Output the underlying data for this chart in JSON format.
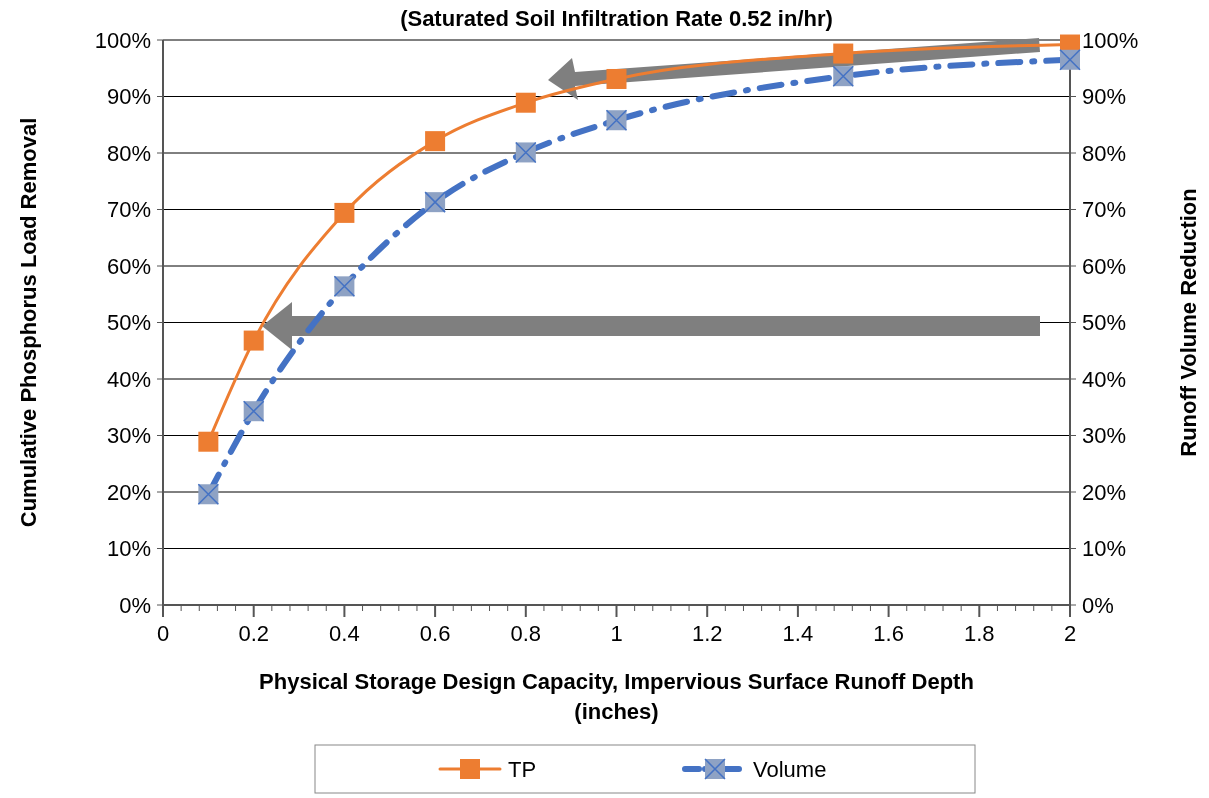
{
  "chart_data": {
    "type": "line",
    "title": "(Saturated Soil Infiltration Rate 0.52 in/hr)",
    "xlabel": "Physical Storage Design Capacity, Impervious Surface Runoff  Depth (inches)",
    "ylabel": "Cumulative Phosphorus Load Removal",
    "y2label": "Runoff Volume Reduction",
    "x": [
      0.1,
      0.2,
      0.4,
      0.6,
      0.8,
      1.0,
      1.5,
      2.0
    ],
    "series": [
      {
        "name": "TP",
        "color": "#ed7d31",
        "marker": "square",
        "line_style": "solid",
        "values": [
          28.9,
          46.8,
          69.4,
          82.1,
          88.9,
          93.1,
          97.6,
          99.2
        ]
      },
      {
        "name": "Volume",
        "color": "#4472c4",
        "marker": "cross",
        "line_style": "dashed",
        "values": [
          19.6,
          34.3,
          56.4,
          71.3,
          80.1,
          85.8,
          93.6,
          96.5
        ]
      }
    ],
    "xlim": [
      0,
      2
    ],
    "xticks": [
      0,
      {
        "value": 0.04,
        "label": null
      },
      {
        "value": 0.08,
        "label": null
      },
      {
        "value": 0.12,
        "label": null
      },
      {
        "value": 0.16,
        "label": null
      },
      0.2,
      {
        "value": 0.24,
        "label": null
      },
      {
        "value": 0.28,
        "label": null
      },
      {
        "value": 0.32,
        "label": null
      },
      {
        "value": 0.36,
        "label": null
      },
      0.4,
      {
        "value": 0.44,
        "label": null
      },
      {
        "value": 0.48,
        "label": null
      },
      {
        "value": 0.52,
        "label": null
      },
      {
        "value": 0.56,
        "label": null
      },
      0.6,
      {
        "value": 0.64,
        "label": null
      },
      {
        "value": 0.68,
        "label": null
      },
      {
        "value": 0.72,
        "label": null
      },
      {
        "value": 0.76,
        "label": null
      },
      0.8,
      {
        "value": 0.84,
        "label": null
      },
      {
        "value": 0.88,
        "label": null
      },
      {
        "value": 0.92,
        "label": null
      },
      {
        "value": 0.96,
        "label": null
      },
      1,
      {
        "value": 1.04,
        "label": null
      },
      {
        "value": 1.08,
        "label": null
      },
      {
        "value": 1.12,
        "label": null
      },
      {
        "value": 1.16,
        "label": null
      },
      1.2,
      {
        "value": 1.24,
        "label": null
      },
      {
        "value": 1.28,
        "label": null
      },
      {
        "value": 1.32,
        "label": null
      },
      {
        "value": 1.36,
        "label": null
      },
      1.4,
      {
        "value": 1.44,
        "label": null
      },
      {
        "value": 1.48,
        "label": null
      },
      {
        "value": 1.52,
        "label": null
      },
      {
        "value": 1.56,
        "label": null
      },
      1.6,
      {
        "value": 1.64,
        "label": null
      },
      {
        "value": 1.68,
        "label": null
      },
      {
        "value": 1.72,
        "label": null
      },
      {
        "value": 1.76,
        "label": null
      },
      1.8,
      {
        "value": 1.84,
        "label": null
      },
      {
        "value": 1.88,
        "label": null
      },
      {
        "value": 1.92,
        "label": null
      },
      {
        "value": 1.96,
        "label": null
      },
      2
    ],
    "ylim": [
      0,
      100
    ],
    "yticks": [
      {
        "value": 0,
        "label": "0%"
      },
      {
        "value": 10,
        "label": "10%"
      },
      {
        "value": 20,
        "label": "20%"
      },
      {
        "value": 30,
        "label": "30%"
      },
      {
        "value": 40,
        "label": "40%"
      },
      {
        "value": 50,
        "label": "50%"
      },
      {
        "value": 60,
        "label": "60%"
      },
      {
        "value": 70,
        "label": "70%"
      },
      {
        "value": 80,
        "label": "80%"
      },
      {
        "value": 90,
        "label": "90%"
      },
      {
        "value": 100,
        "label": "100%"
      }
    ],
    "y2lim": [
      0,
      100
    ],
    "y2ticks": [
      {
        "value": 0,
        "label": "0%"
      },
      {
        "value": 10,
        "label": "10%"
      },
      {
        "value": 20,
        "label": "20%"
      },
      {
        "value": 30,
        "label": "30%"
      },
      {
        "value": 40,
        "label": "40%"
      },
      {
        "value": 50,
        "label": "50%"
      },
      {
        "value": 60,
        "label": "60%"
      },
      {
        "value": 70,
        "label": "70%"
      },
      {
        "value": 80,
        "label": "80%"
      },
      {
        "value": 90,
        "label": "90%"
      },
      {
        "value": 100,
        "label": "100%"
      }
    ],
    "grid": "y",
    "legend": "bottom"
  }
}
